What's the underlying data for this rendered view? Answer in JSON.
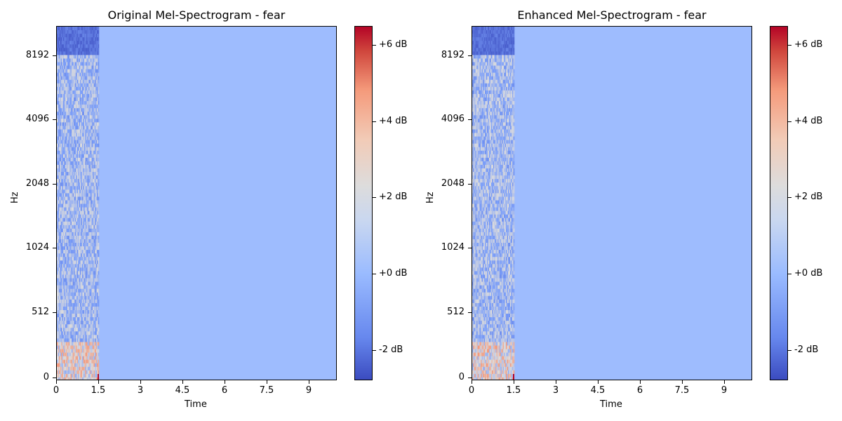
{
  "chart_data": [
    {
      "type": "heatmap",
      "title": "Original Mel-Spectrogram - fear",
      "xlabel": "Time",
      "ylabel": "Hz",
      "x_ticks": [
        "0",
        "1.5",
        "3",
        "4.5",
        "6",
        "7.5",
        "9"
      ],
      "x_tick_values": [
        0,
        1.5,
        3,
        4.5,
        6,
        7.5,
        9
      ],
      "xlim": [
        0,
        10
      ],
      "y_ticks": [
        "0",
        "512",
        "1024",
        "2048",
        "4096",
        "8192"
      ],
      "y_scale": "mel",
      "colorbar": {
        "ticks": [
          "-2 dB",
          "+0 dB",
          "+2 dB",
          "+4 dB",
          "+6 dB"
        ],
        "tick_values": [
          -2,
          0,
          2,
          4,
          6
        ],
        "range": [
          -2.8,
          6.5
        ],
        "colormap": "coolwarm"
      },
      "active_region_time": [
        0,
        1.5
      ],
      "background_level_db": 0
    },
    {
      "type": "heatmap",
      "title": "Enhanced Mel-Spectrogram - fear",
      "xlabel": "Time",
      "ylabel": "Hz",
      "x_ticks": [
        "0",
        "1.5",
        "3",
        "4.5",
        "6",
        "7.5",
        "9"
      ],
      "x_tick_values": [
        0,
        1.5,
        3,
        4.5,
        6,
        7.5,
        9
      ],
      "xlim": [
        0,
        10
      ],
      "y_ticks": [
        "0",
        "512",
        "1024",
        "2048",
        "4096",
        "8192"
      ],
      "y_scale": "mel",
      "colorbar": {
        "ticks": [
          "-2 dB",
          "+0 dB",
          "+2 dB",
          "+4 dB",
          "+6 dB"
        ],
        "tick_values": [
          -2,
          0,
          2,
          4,
          6
        ],
        "range": [
          -2.8,
          6.5
        ],
        "colormap": "coolwarm"
      },
      "active_region_time": [
        0,
        1.5
      ],
      "background_level_db": 0
    }
  ]
}
